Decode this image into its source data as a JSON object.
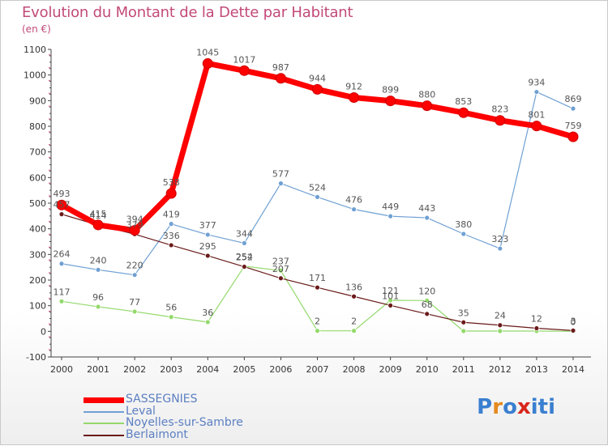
{
  "chart_data": {
    "type": "line",
    "title": "Evolution du Montant de la Dette par Habitant",
    "subtitle": "(en €)",
    "xlabel": "",
    "ylabel": "",
    "x": [
      "2000",
      "2001",
      "2002",
      "2003",
      "2004",
      "2005",
      "2006",
      "2007",
      "2008",
      "2009",
      "2010",
      "2011",
      "2012",
      "2013",
      "2014"
    ],
    "ylim": [
      -100,
      1100
    ],
    "yticks": [
      -100,
      0,
      100,
      200,
      300,
      400,
      500,
      600,
      700,
      800,
      900,
      1000,
      1100
    ],
    "grid": false,
    "legend_position": "bottom-left",
    "series": [
      {
        "name": "SASSEGNIES",
        "color": "#ff0000",
        "values": [
          493,
          415,
          394,
          538,
          1045,
          1017,
          987,
          944,
          912,
          899,
          880,
          853,
          823,
          801,
          759
        ]
      },
      {
        "name": "Leval",
        "color": "#6fa0d3",
        "values": [
          264,
          240,
          220,
          419,
          377,
          344,
          577,
          524,
          476,
          449,
          443,
          380,
          323,
          934,
          869
        ]
      },
      {
        "name": "Noyelles-sur-Sambre",
        "color": "#93d96b",
        "values": [
          117,
          96,
          77,
          56,
          36,
          254,
          237,
          2,
          2,
          121,
          120,
          1,
          1,
          1,
          0
        ]
      },
      {
        "name": "Berlaimont",
        "color": "#6b1a1a",
        "values": [
          457,
          414,
          379,
          336,
          295,
          252,
          207,
          171,
          136,
          101,
          68,
          35,
          24,
          12,
          3
        ]
      }
    ],
    "data_labels": [
      {
        "series": 0,
        "values": [
          "493",
          "415",
          "394",
          "538",
          "1045",
          "1017",
          "987",
          "944",
          "912",
          "899",
          "880",
          "853",
          "823",
          "801",
          "759"
        ]
      },
      {
        "series": 1,
        "values": [
          "264",
          "240",
          "220",
          "419",
          "377",
          "344",
          "577",
          "524",
          "476",
          "449",
          "443",
          "380",
          "323",
          "934",
          "869"
        ]
      },
      {
        "series": 2,
        "values": [
          "117",
          "96",
          "77",
          "56",
          "36",
          "254",
          "237",
          "2",
          "2",
          "121",
          "120",
          "",
          "",
          "",
          "0"
        ]
      },
      {
        "series": 3,
        "values": [
          "457",
          "414",
          "379",
          "336",
          "295",
          "252",
          "207",
          "171",
          "136",
          "101",
          "68",
          "35",
          "24",
          "12",
          "3"
        ]
      }
    ]
  },
  "logo": {
    "text": "Proxiti",
    "letters": [
      "P",
      "r",
      "o",
      "x",
      "i",
      "t",
      "i"
    ],
    "colors": [
      "#3a7fd0",
      "#e58a1f",
      "#3a7fd0",
      "#d8261c",
      "#3a7fd0",
      "#3a7fd0",
      "#3a7fd0"
    ]
  }
}
